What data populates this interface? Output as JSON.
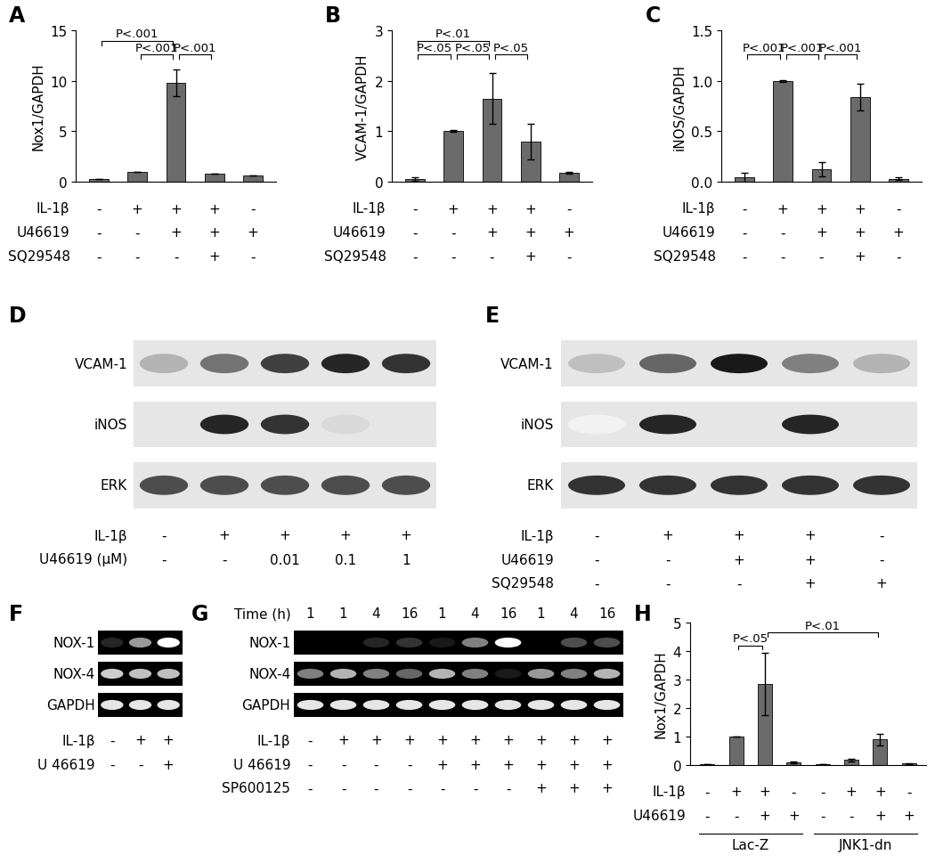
{
  "chart_data": [
    {
      "panel": "A",
      "type": "bar",
      "y_label": "Nox1/GAPDH",
      "color": "#6b6b6b",
      "values": [
        0.3,
        1.0,
        9.8,
        0.8,
        0.6
      ],
      "errors": [
        0.0,
        0.0,
        1.3,
        0.0,
        0.0
      ],
      "ylim": [
        0,
        15
      ],
      "yticks": [
        0,
        5,
        10,
        15
      ],
      "conditions": [
        {
          "name": "IL-1β",
          "values": [
            "-",
            "+",
            "+",
            "+",
            "-"
          ]
        },
        {
          "name": "U46619",
          "values": [
            "-",
            "-",
            "+",
            "+",
            "+"
          ]
        },
        {
          "name": "SQ29548",
          "values": [
            "-",
            "-",
            "-",
            "+",
            "-"
          ]
        }
      ],
      "brackets": [
        {
          "from": 0,
          "to": 2,
          "label": "P<.001"
        },
        {
          "from": 1,
          "to": 2,
          "label": "P<.001"
        },
        {
          "from": 2,
          "to": 3,
          "label": "P<.001"
        }
      ]
    },
    {
      "panel": "B",
      "type": "bar",
      "y_label": "VCAM-1/GAPDH",
      "color": "#6b6b6b",
      "values": [
        0.05,
        1.0,
        1.65,
        0.8,
        0.18
      ],
      "errors": [
        0.03,
        0.02,
        0.5,
        0.35,
        0.02
      ],
      "ylim": [
        0,
        3
      ],
      "yticks": [
        0,
        1,
        2,
        3
      ],
      "conditions": [
        {
          "name": "IL-1β",
          "values": [
            "-",
            "+",
            "+",
            "+",
            "-"
          ]
        },
        {
          "name": "U46619",
          "values": [
            "-",
            "-",
            "+",
            "+",
            "+"
          ]
        },
        {
          "name": "SQ29548",
          "values": [
            "-",
            "-",
            "-",
            "+",
            "-"
          ]
        }
      ],
      "brackets": [
        {
          "from": 0,
          "to": 2,
          "label": "P<.01"
        },
        {
          "from": 0,
          "to": 1,
          "label": "P<.05"
        },
        {
          "from": 1,
          "to": 2,
          "label": "P<.05"
        },
        {
          "from": 2,
          "to": 3,
          "label": "P<.05"
        }
      ]
    },
    {
      "panel": "C",
      "type": "bar",
      "y_label": "iNOS/GAPDH",
      "color": "#6b6b6b",
      "values": [
        0.04,
        1.0,
        0.12,
        0.84,
        0.03
      ],
      "errors": [
        0.05,
        0.01,
        0.07,
        0.13,
        0.01
      ],
      "ylim": [
        0,
        1.5
      ],
      "yticks": [
        {
          "value": 0,
          "label": "0.0"
        },
        {
          "value": 0.5,
          "label": "0.5"
        },
        {
          "value": 1,
          "label": "1.0"
        },
        {
          "value": 1.5,
          "label": "1.5"
        }
      ],
      "conditions": [
        {
          "name": "IL-1β",
          "values": [
            "-",
            "+",
            "+",
            "+",
            "-"
          ]
        },
        {
          "name": "U46619",
          "values": [
            "-",
            "-",
            "+",
            "+",
            "+"
          ]
        },
        {
          "name": "SQ29548",
          "values": [
            "-",
            "-",
            "-",
            "+",
            "-"
          ]
        }
      ],
      "brackets": [
        {
          "from": 0,
          "to": 1,
          "label": "P<.001"
        },
        {
          "from": 1,
          "to": 2,
          "label": "P<.001"
        },
        {
          "from": 2,
          "to": 3,
          "label": "P<.001"
        }
      ]
    },
    {
      "panel": "D",
      "type": "blot",
      "rows": [
        {
          "name": "VCAM-1",
          "intensities": [
            0.3,
            0.55,
            0.75,
            0.85,
            0.8
          ]
        },
        {
          "name": "iNOS",
          "intensities": [
            0.1,
            0.85,
            0.8,
            0.15,
            0.1
          ]
        },
        {
          "name": "ERK",
          "intensities": [
            0.7,
            0.7,
            0.7,
            0.7,
            0.7
          ]
        }
      ],
      "conditions": [
        {
          "name": "IL-1β",
          "values": [
            "-",
            "+",
            "+",
            "+",
            "+"
          ]
        },
        {
          "name": "U46619 (μM)",
          "values": [
            "-",
            "-",
            "0.01",
            "0.1",
            "1"
          ]
        }
      ]
    },
    {
      "panel": "E",
      "type": "blot",
      "rows": [
        {
          "name": "VCAM-1",
          "intensities": [
            0.25,
            0.6,
            0.9,
            0.5,
            0.3
          ]
        },
        {
          "name": "iNOS",
          "intensities": [
            0.05,
            0.85,
            0.1,
            0.85,
            0.1
          ]
        },
        {
          "name": "ERK",
          "intensities": [
            0.8,
            0.8,
            0.8,
            0.8,
            0.8
          ]
        }
      ],
      "conditions": [
        {
          "name": "IL-1β",
          "values": [
            "-",
            "+",
            "+",
            "+",
            "-"
          ]
        },
        {
          "name": "U46619",
          "values": [
            "-",
            "-",
            "+",
            "+",
            "-"
          ]
        },
        {
          "name": "SQ29548",
          "values": [
            "-",
            "-",
            "-",
            "+",
            "+"
          ]
        }
      ]
    },
    {
      "panel": "F",
      "type": "gel",
      "rows": [
        {
          "name": "NOX-1",
          "intensities": [
            0.15,
            0.6,
            1.0
          ]
        },
        {
          "name": "NOX-4",
          "intensities": [
            0.8,
            0.75,
            0.75
          ]
        },
        {
          "name": "GAPDH",
          "intensities": [
            0.9,
            0.9,
            0.9
          ]
        }
      ],
      "conditions": [
        {
          "name": "IL-1β",
          "values": [
            "-",
            "+",
            "+"
          ]
        },
        {
          "name": "U 46619",
          "values": [
            "-",
            "-",
            "+"
          ]
        }
      ]
    },
    {
      "panel": "G",
      "type": "gel",
      "time": {
        "name": "Time (h)",
        "values": [
          1,
          1,
          4,
          16,
          1,
          4,
          16,
          1,
          4,
          16
        ]
      },
      "rows": [
        {
          "name": "NOX-1",
          "intensities": [
            0.0,
            0.0,
            0.15,
            0.2,
            0.1,
            0.5,
            1.0,
            0.0,
            0.3,
            0.3
          ]
        },
        {
          "name": "NOX-4",
          "intensities": [
            0.5,
            0.7,
            0.5,
            0.4,
            0.7,
            0.5,
            0.1,
            0.6,
            0.5,
            0.7
          ]
        },
        {
          "name": "GAPDH",
          "intensities": [
            0.9,
            0.9,
            0.9,
            0.9,
            0.9,
            0.9,
            0.9,
            0.9,
            0.9,
            0.9
          ]
        }
      ],
      "conditions": [
        {
          "name": "IL-1β",
          "values": [
            "-",
            "+",
            "+",
            "+",
            "+",
            "+",
            "+",
            "+",
            "+",
            "+"
          ]
        },
        {
          "name": "U 46619",
          "values": [
            "-",
            "-",
            "-",
            "-",
            "+",
            "+",
            "+",
            "+",
            "+",
            "+"
          ]
        },
        {
          "name": "SP600125",
          "values": [
            "-",
            "-",
            "-",
            "-",
            "-",
            "-",
            "-",
            "+",
            "+",
            "+"
          ]
        }
      ]
    },
    {
      "panel": "H",
      "type": "bar",
      "y_label": "Nox1/GAPDH",
      "color": "#6b6b6b",
      "values": [
        0.03,
        1.0,
        2.85,
        0.1,
        0.02,
        0.18,
        0.9,
        0.05
      ],
      "errors": [
        0.0,
        0.0,
        1.1,
        0.03,
        0.0,
        0.05,
        0.2,
        0.01
      ],
      "ylim": [
        0,
        5
      ],
      "yticks": [
        0,
        1,
        2,
        3,
        4,
        5
      ],
      "conditions": [
        {
          "name": "IL-1β",
          "values": [
            "-",
            "+",
            "+",
            "-",
            "-",
            "+",
            "+",
            "-"
          ]
        },
        {
          "name": "U46619",
          "values": [
            "-",
            "-",
            "+",
            "+",
            "-",
            "-",
            "+",
            "+"
          ]
        }
      ],
      "groups": [
        {
          "label": "Lac-Z",
          "start": 0,
          "end": 3
        },
        {
          "label": "JNK1-dn",
          "start": 4,
          "end": 7
        }
      ],
      "brackets": [
        {
          "from": 1,
          "to": 2,
          "label": "P<.05"
        },
        {
          "from": 2,
          "to": 6,
          "label": "P<.01"
        }
      ]
    }
  ]
}
